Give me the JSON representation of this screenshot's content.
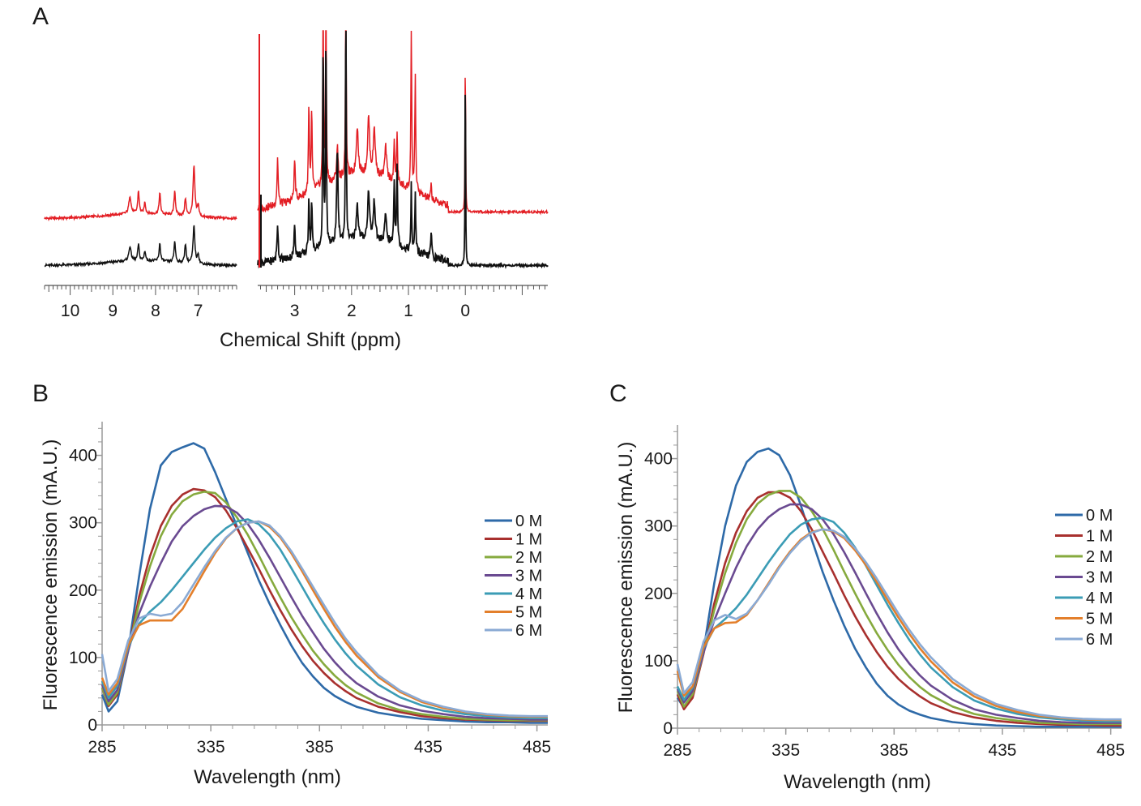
{
  "panels": {
    "a_label": "A",
    "b_label": "B",
    "c_label": "C"
  },
  "chart_data": [
    {
      "type": "line",
      "panel": "A",
      "title": "",
      "xlabel": "Chemical Shift (ppm)",
      "ylabel": "",
      "x_segments": [
        [
          10.6,
          6.1
        ],
        [
          3.65,
          -1.45
        ]
      ],
      "xticks": [
        10,
        9,
        8,
        7,
        3,
        2,
        1,
        0
      ],
      "series": [
        {
          "name": "red spectrum",
          "color": "#e31e24"
        },
        {
          "name": "black spectrum",
          "color": "#111111"
        }
      ],
      "peaks_ppm": [
        8.6,
        8.4,
        8.25,
        7.9,
        7.55,
        7.3,
        7.1,
        3.3,
        3.0,
        2.75,
        2.7,
        2.5,
        2.4,
        2.1,
        1.9,
        1.7,
        1.6,
        1.4,
        1.2,
        0.9,
        0.85,
        0.6,
        0.0
      ]
    },
    {
      "type": "line",
      "panel": "B",
      "title": "",
      "xlabel": "Wavelength (nm)",
      "ylabel": "Fluorescence emission (mA.U.)",
      "xlim": [
        285,
        490
      ],
      "ylim": [
        0,
        450
      ],
      "xticks": [
        285,
        335,
        385,
        435,
        485
      ],
      "yticks": [
        0,
        100,
        200,
        300,
        400
      ],
      "legend": "right",
      "series": [
        {
          "name": "0 M",
          "color": "#2e6aa8",
          "x": [
            285,
            288,
            292,
            297,
            302,
            307,
            312,
            317,
            322,
            327,
            332,
            337,
            342,
            347,
            352,
            357,
            362,
            367,
            372,
            377,
            382,
            387,
            392,
            397,
            402,
            412,
            422,
            432,
            442,
            452,
            462,
            472,
            482,
            490
          ],
          "y": [
            45,
            20,
            35,
            110,
            220,
            320,
            385,
            405,
            412,
            418,
            410,
            375,
            335,
            295,
            255,
            215,
            180,
            148,
            118,
            92,
            72,
            55,
            43,
            34,
            27,
            18,
            13,
            9,
            7,
            5,
            4,
            4,
            3,
            3
          ]
        },
        {
          "name": "1 M",
          "color": "#a8302e",
          "x": [
            285,
            288,
            292,
            297,
            302,
            307,
            312,
            317,
            322,
            327,
            332,
            337,
            342,
            347,
            352,
            357,
            362,
            367,
            372,
            377,
            382,
            387,
            392,
            397,
            402,
            412,
            422,
            432,
            442,
            452,
            462,
            472,
            482,
            490
          ],
          "y": [
            55,
            28,
            45,
            110,
            190,
            250,
            295,
            325,
            342,
            350,
            348,
            338,
            318,
            292,
            262,
            232,
            200,
            170,
            142,
            117,
            95,
            77,
            62,
            50,
            40,
            27,
            19,
            13,
            10,
            8,
            7,
            6,
            6,
            6
          ]
        },
        {
          "name": "2 M",
          "color": "#86aa3e",
          "x": [
            285,
            288,
            292,
            297,
            302,
            307,
            312,
            317,
            322,
            327,
            332,
            337,
            342,
            347,
            352,
            357,
            362,
            367,
            372,
            377,
            382,
            387,
            392,
            397,
            402,
            412,
            422,
            432,
            442,
            452,
            462,
            472,
            482,
            490
          ],
          "y": [
            55,
            30,
            48,
            110,
            180,
            235,
            280,
            312,
            332,
            342,
            346,
            344,
            330,
            308,
            282,
            252,
            220,
            189,
            160,
            134,
            110,
            90,
            73,
            59,
            48,
            32,
            22,
            16,
            12,
            9,
            8,
            7,
            7,
            7
          ]
        },
        {
          "name": "3 M",
          "color": "#6a4a91",
          "x": [
            285,
            288,
            292,
            297,
            302,
            307,
            312,
            317,
            322,
            327,
            332,
            337,
            342,
            347,
            352,
            357,
            362,
            367,
            372,
            377,
            382,
            387,
            392,
            397,
            402,
            412,
            422,
            432,
            442,
            452,
            462,
            472,
            482,
            490
          ],
          "y": [
            60,
            35,
            52,
            110,
            165,
            205,
            240,
            272,
            295,
            310,
            320,
            325,
            324,
            315,
            298,
            275,
            248,
            219,
            190,
            162,
            137,
            113,
            93,
            76,
            62,
            42,
            29,
            21,
            16,
            12,
            10,
            9,
            8,
            8
          ]
        },
        {
          "name": "4 M",
          "color": "#3b9cb5",
          "x": [
            285,
            288,
            292,
            297,
            302,
            307,
            312,
            317,
            322,
            327,
            332,
            337,
            342,
            347,
            352,
            357,
            362,
            367,
            372,
            377,
            382,
            387,
            392,
            397,
            402,
            412,
            422,
            432,
            442,
            452,
            462,
            472,
            482,
            490
          ],
          "y": [
            65,
            40,
            58,
            115,
            150,
            168,
            182,
            200,
            220,
            240,
            260,
            278,
            292,
            302,
            305,
            298,
            282,
            260,
            233,
            205,
            177,
            151,
            127,
            106,
            88,
            60,
            41,
            29,
            21,
            16,
            13,
            11,
            10,
            10
          ]
        },
        {
          "name": "5 M",
          "color": "#e37f2b",
          "x": [
            285,
            288,
            292,
            297,
            302,
            307,
            312,
            317,
            322,
            327,
            332,
            337,
            342,
            347,
            352,
            357,
            362,
            367,
            372,
            377,
            382,
            387,
            392,
            397,
            402,
            412,
            422,
            432,
            442,
            452,
            462,
            472,
            482,
            490
          ],
          "y": [
            70,
            45,
            62,
            118,
            148,
            155,
            155,
            155,
            172,
            200,
            228,
            255,
            277,
            292,
            300,
            302,
            294,
            278,
            255,
            228,
            200,
            172,
            146,
            123,
            103,
            71,
            49,
            34,
            25,
            19,
            15,
            13,
            12,
            12
          ]
        },
        {
          "name": "6 M",
          "color": "#8aaad4",
          "x": [
            285,
            288,
            292,
            297,
            302,
            307,
            312,
            317,
            322,
            327,
            332,
            337,
            342,
            347,
            352,
            357,
            362,
            367,
            372,
            377,
            382,
            387,
            392,
            397,
            402,
            412,
            422,
            432,
            442,
            452,
            462,
            472,
            482,
            490
          ],
          "y": [
            105,
            50,
            68,
            125,
            158,
            165,
            162,
            165,
            182,
            208,
            234,
            258,
            278,
            292,
            300,
            302,
            296,
            280,
            258,
            232,
            205,
            178,
            152,
            128,
            108,
            74,
            51,
            36,
            27,
            20,
            16,
            14,
            13,
            13
          ]
        }
      ]
    },
    {
      "type": "line",
      "panel": "C",
      "title": "",
      "xlabel": "Wavelength (nm)",
      "ylabel": "Fluorescence emission (mA.U.)",
      "xlim": [
        285,
        490
      ],
      "ylim": [
        0,
        450
      ],
      "xticks": [
        285,
        335,
        385,
        435,
        485
      ],
      "yticks": [
        0,
        100,
        200,
        300,
        400
      ],
      "legend": "right",
      "series": [
        {
          "name": "0 M",
          "color": "#2e6aa8",
          "x": [
            285,
            288,
            292,
            297,
            302,
            307,
            312,
            317,
            322,
            327,
            332,
            337,
            342,
            347,
            352,
            357,
            362,
            367,
            372,
            377,
            382,
            387,
            392,
            397,
            402,
            412,
            422,
            432,
            442,
            452,
            462,
            472,
            482,
            490
          ],
          "y": [
            45,
            30,
            50,
            115,
            215,
            300,
            360,
            395,
            410,
            415,
            405,
            375,
            330,
            280,
            232,
            190,
            152,
            118,
            90,
            66,
            48,
            35,
            26,
            20,
            15,
            9,
            6,
            4,
            3,
            2,
            2,
            2,
            2,
            2
          ]
        },
        {
          "name": "1 M",
          "color": "#a8302e",
          "x": [
            285,
            288,
            292,
            297,
            302,
            307,
            312,
            317,
            322,
            327,
            332,
            337,
            342,
            347,
            352,
            357,
            362,
            367,
            372,
            377,
            382,
            387,
            392,
            397,
            402,
            412,
            422,
            432,
            442,
            452,
            462,
            472,
            482,
            490
          ],
          "y": [
            50,
            28,
            45,
            110,
            185,
            245,
            290,
            322,
            342,
            350,
            350,
            342,
            322,
            295,
            262,
            230,
            197,
            166,
            138,
            113,
            91,
            73,
            59,
            47,
            37,
            24,
            16,
            11,
            8,
            6,
            5,
            5,
            4,
            4
          ]
        },
        {
          "name": "2 M",
          "color": "#86aa3e",
          "x": [
            285,
            288,
            292,
            297,
            302,
            307,
            312,
            317,
            322,
            327,
            332,
            337,
            342,
            347,
            352,
            357,
            362,
            367,
            372,
            377,
            382,
            387,
            392,
            397,
            402,
            412,
            422,
            432,
            442,
            452,
            462,
            472,
            482,
            490
          ],
          "y": [
            55,
            32,
            50,
            112,
            175,
            230,
            275,
            310,
            333,
            346,
            352,
            352,
            342,
            322,
            296,
            265,
            232,
            200,
            169,
            141,
            116,
            94,
            76,
            61,
            49,
            32,
            21,
            15,
            11,
            8,
            7,
            6,
            6,
            6
          ]
        },
        {
          "name": "3 M",
          "color": "#6a4a91",
          "x": [
            285,
            288,
            292,
            297,
            302,
            307,
            312,
            317,
            322,
            327,
            332,
            337,
            342,
            347,
            352,
            357,
            362,
            367,
            372,
            377,
            382,
            387,
            392,
            397,
            402,
            412,
            422,
            432,
            442,
            452,
            462,
            472,
            482,
            490
          ],
          "y": [
            58,
            38,
            55,
            112,
            160,
            200,
            238,
            270,
            295,
            313,
            325,
            332,
            332,
            325,
            310,
            288,
            261,
            231,
            200,
            170,
            142,
            117,
            96,
            78,
            63,
            42,
            28,
            20,
            15,
            11,
            9,
            8,
            8,
            8
          ]
        },
        {
          "name": "4 M",
          "color": "#3b9cb5",
          "x": [
            285,
            288,
            292,
            297,
            302,
            307,
            312,
            317,
            322,
            327,
            332,
            337,
            342,
            347,
            352,
            357,
            362,
            367,
            372,
            377,
            382,
            387,
            392,
            397,
            402,
            412,
            422,
            432,
            442,
            452,
            462,
            472,
            482,
            490
          ],
          "y": [
            62,
            42,
            60,
            118,
            148,
            162,
            178,
            198,
            222,
            246,
            268,
            288,
            302,
            310,
            312,
            306,
            290,
            268,
            241,
            212,
            183,
            156,
            131,
            109,
            90,
            61,
            41,
            29,
            21,
            16,
            13,
            11,
            10,
            10
          ]
        },
        {
          "name": "5 M",
          "color": "#e37f2b",
          "x": [
            285,
            288,
            292,
            297,
            302,
            307,
            312,
            317,
            322,
            327,
            332,
            337,
            342,
            347,
            352,
            357,
            362,
            367,
            372,
            377,
            382,
            387,
            392,
            397,
            402,
            412,
            422,
            432,
            442,
            452,
            462,
            472,
            482,
            490
          ],
          "y": [
            85,
            48,
            62,
            120,
            148,
            156,
            157,
            168,
            190,
            215,
            240,
            262,
            280,
            291,
            295,
            292,
            282,
            264,
            242,
            217,
            190,
            164,
            140,
            118,
            99,
            68,
            47,
            33,
            24,
            18,
            15,
            13,
            12,
            12
          ]
        },
        {
          "name": "6 M",
          "color": "#8aaad4",
          "x": [
            285,
            288,
            292,
            297,
            302,
            307,
            312,
            317,
            322,
            327,
            332,
            337,
            342,
            347,
            352,
            357,
            362,
            367,
            372,
            377,
            382,
            387,
            392,
            397,
            402,
            412,
            422,
            432,
            442,
            452,
            462,
            472,
            482,
            490
          ],
          "y": [
            95,
            52,
            68,
            128,
            160,
            168,
            162,
            170,
            190,
            213,
            238,
            260,
            278,
            290,
            295,
            293,
            284,
            267,
            246,
            222,
            196,
            170,
            146,
            124,
            105,
            73,
            51,
            36,
            27,
            20,
            16,
            14,
            13,
            13
          ]
        }
      ]
    }
  ]
}
